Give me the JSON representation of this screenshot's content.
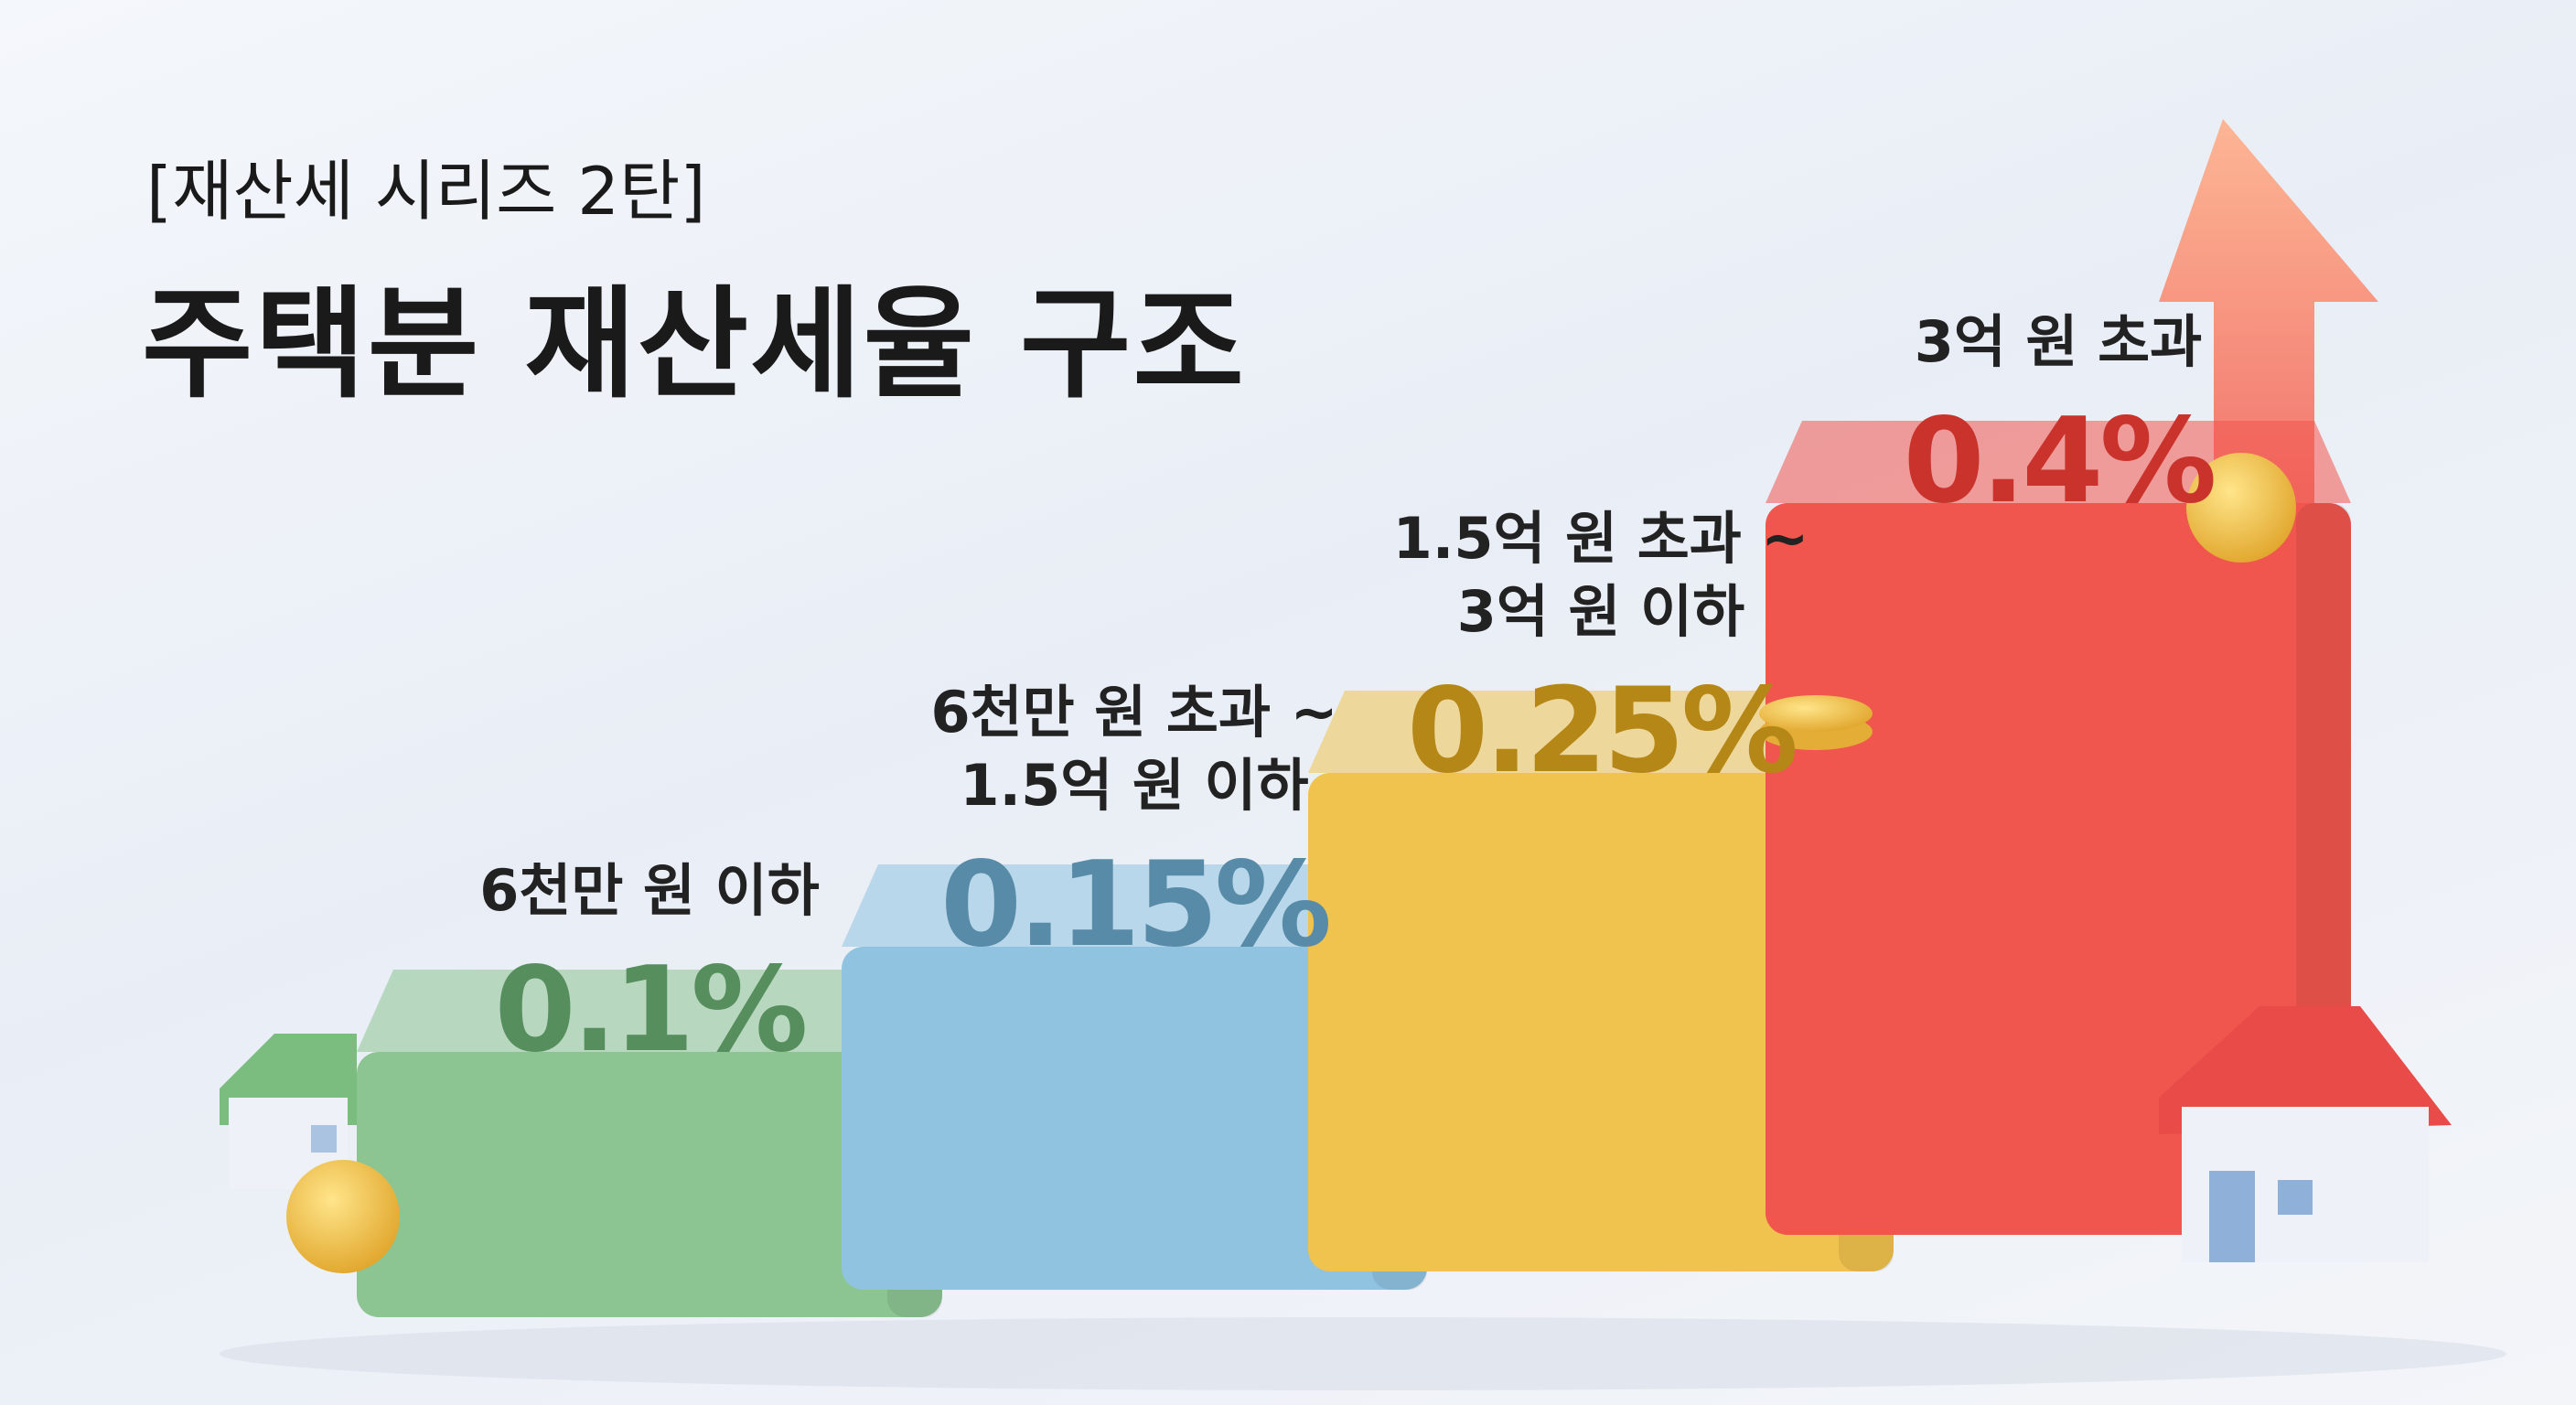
{
  "chart_data": {
    "type": "bar",
    "subtitle": "[재산세 시리즈 2탄]",
    "title": "주택분 재산세율 구조",
    "categories": [
      "6천만 원 이하",
      "6천만 원 초과 ~\n1.5억 원 이하",
      "1.5억 원 초과 ~\n3억 원 이하",
      "3억 원 초과"
    ],
    "values": [
      0.1,
      0.15,
      0.25,
      0.4
    ],
    "value_labels": [
      "0.1%",
      "0.15%",
      "0.25%",
      "0.4%"
    ],
    "colors": [
      "#8cc492",
      "#8fc3e0",
      "#f0c24e",
      "#f0564e"
    ]
  }
}
